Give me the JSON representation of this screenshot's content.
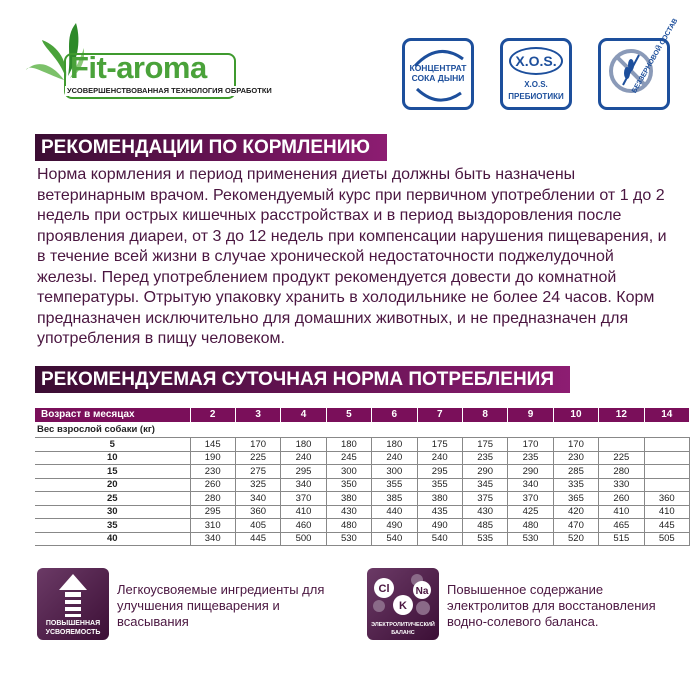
{
  "logo": {
    "brand": "Fit-aroma",
    "tagline": "УСОВЕРШЕНСТВОВАННАЯ ТЕХНОЛОГИЯ ОБРАБОТКИ"
  },
  "badges": [
    {
      "text": "КОНЦЕНТРАТ СОКА ДЫНИ"
    },
    {
      "big": "X.O.S.",
      "text1": "X.O.S.",
      "text2": "ПРЕБИОТИКИ"
    },
    {
      "text": "БЕЗЗЕРНОВОЙ СОСТАВ"
    }
  ],
  "section1": {
    "title": "РЕКОМЕНДАЦИИ ПО КОРМЛЕНИЮ",
    "text": "Норма кормления и период применения диеты должны быть назначены ветеринарным врачом. Рекомендуемый курс при первичном употреблении от 1 до 2 недель при острых кишечных расстройствах и в период выздоровления после проявления диареи, от 3 до 12 недель при компенсации нарушения пищеварения, и в течение всей жизни в случае хронической недостаточности поджелудочной железы. Перед употреблением продукт рекомендуется довести до комнатной температуры. Отрытую упаковку хранить в холодильнике не более 24 часов. Корм предназначен исключительно для домашних животных, и не предназначен для употребления в пищу человеком."
  },
  "section2": {
    "title": "РЕКОМЕНДУЕМАЯ СУТОЧНАЯ НОРМА ПОТРЕБЛЕНИЯ"
  },
  "table": {
    "header_label": "Возраст в месяцах",
    "ages": [
      "2",
      "3",
      "4",
      "5",
      "6",
      "7",
      "8",
      "9",
      "10",
      "12",
      "14"
    ],
    "weight_label": "Вес взрослой собаки (кг)",
    "rows": [
      {
        "weight": "5",
        "values": [
          "145",
          "170",
          "180",
          "180",
          "180",
          "175",
          "175",
          "170",
          "170",
          "",
          ""
        ]
      },
      {
        "weight": "10",
        "values": [
          "190",
          "225",
          "240",
          "245",
          "240",
          "240",
          "235",
          "235",
          "230",
          "225",
          ""
        ]
      },
      {
        "weight": "15",
        "values": [
          "230",
          "275",
          "295",
          "300",
          "300",
          "295",
          "290",
          "290",
          "285",
          "280",
          ""
        ]
      },
      {
        "weight": "20",
        "values": [
          "260",
          "325",
          "340",
          "350",
          "355",
          "355",
          "345",
          "340",
          "335",
          "330",
          ""
        ]
      },
      {
        "weight": "25",
        "values": [
          "280",
          "340",
          "370",
          "380",
          "385",
          "380",
          "375",
          "370",
          "365",
          "260",
          "360"
        ]
      },
      {
        "weight": "30",
        "values": [
          "295",
          "360",
          "410",
          "430",
          "440",
          "435",
          "430",
          "425",
          "420",
          "410",
          "410"
        ]
      },
      {
        "weight": "35",
        "values": [
          "310",
          "405",
          "460",
          "480",
          "490",
          "490",
          "485",
          "480",
          "470",
          "465",
          "445"
        ]
      },
      {
        "weight": "40",
        "values": [
          "340",
          "445",
          "500",
          "530",
          "540",
          "540",
          "535",
          "530",
          "520",
          "515",
          "505"
        ]
      }
    ]
  },
  "features": [
    {
      "icon": "arrow-up-icon",
      "label1": "ПОВЫШЕННАЯ",
      "label2": "УСВОЯЕМОСТЬ",
      "text": "Легкоусвояемые ингредиенты для улучшения пищеварения и всасывания"
    },
    {
      "icon": "electrolytes-icon",
      "el1": "Cl",
      "el2": "Na",
      "el3": "K",
      "label1": "ЭЛЕКТРОЛИТИЧЕСКИЙ",
      "label2": "БАЛАНС",
      "text": "Повышенное содержание электролитов для восстановления водно-солевого баланса."
    }
  ],
  "colors": {
    "accent": "#7a0f5a",
    "badge_blue": "#1d4f9c",
    "logo_green": "#4aa23a"
  }
}
